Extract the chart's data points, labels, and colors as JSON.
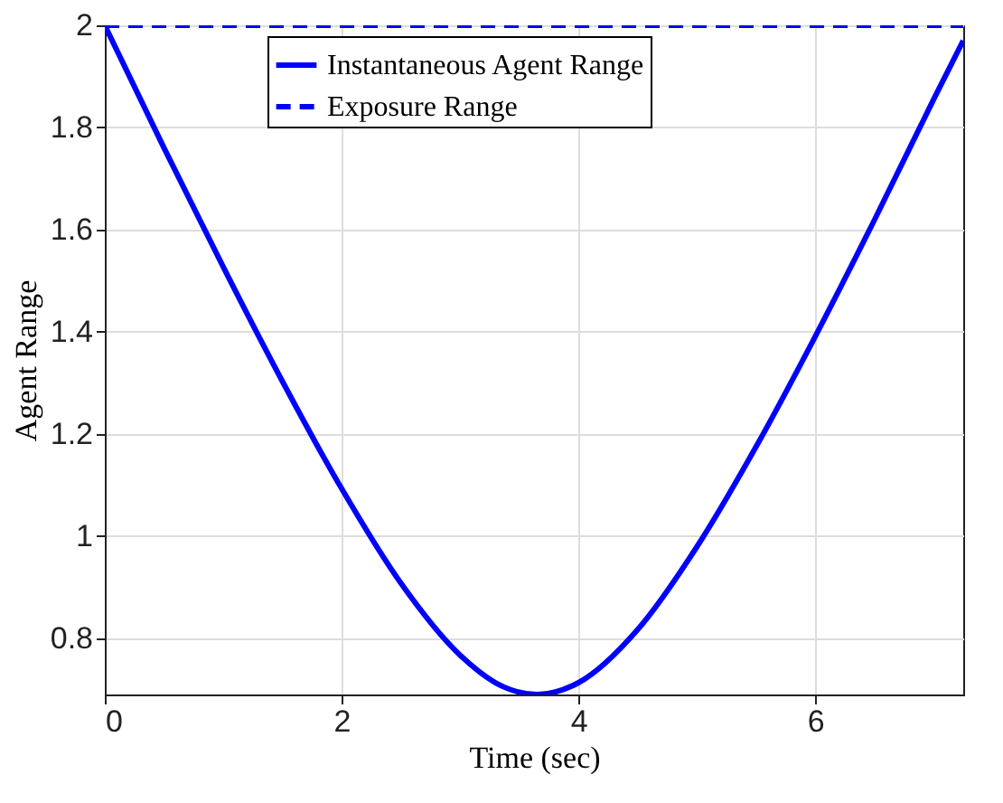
{
  "chart_data": {
    "type": "line",
    "xlabel": "Time (sec)",
    "ylabel": "Agent Range",
    "xlim": [
      0,
      7.25
    ],
    "ylim": [
      0.69,
      2
    ],
    "xticks": [
      0,
      2,
      4,
      6
    ],
    "yticks": [
      0.8,
      1,
      1.2,
      1.4,
      1.6,
      1.8,
      2
    ],
    "grid": true,
    "legend": "top",
    "marker": "none",
    "series": [
      {
        "name": "Instantaneous Agent Range",
        "color": "#0000ff",
        "line_style": "solid",
        "x": [
          0,
          0.5,
          1,
          1.5,
          2,
          2.5,
          3,
          3.3,
          3.65,
          4,
          4.5,
          5,
          5.5,
          6,
          6.5,
          7,
          7.25
        ],
        "values": [
          2.0,
          1.76,
          1.527,
          1.303,
          1.093,
          0.908,
          0.767,
          0.713,
          0.69,
          0.713,
          0.817,
          0.979,
          1.175,
          1.391,
          1.619,
          1.855,
          1.97
        ]
      },
      {
        "name": "Exposure Range",
        "color": "#0000ff",
        "line_style": "dashed",
        "x": [
          0,
          7.25
        ],
        "values": [
          2,
          2
        ]
      }
    ]
  }
}
